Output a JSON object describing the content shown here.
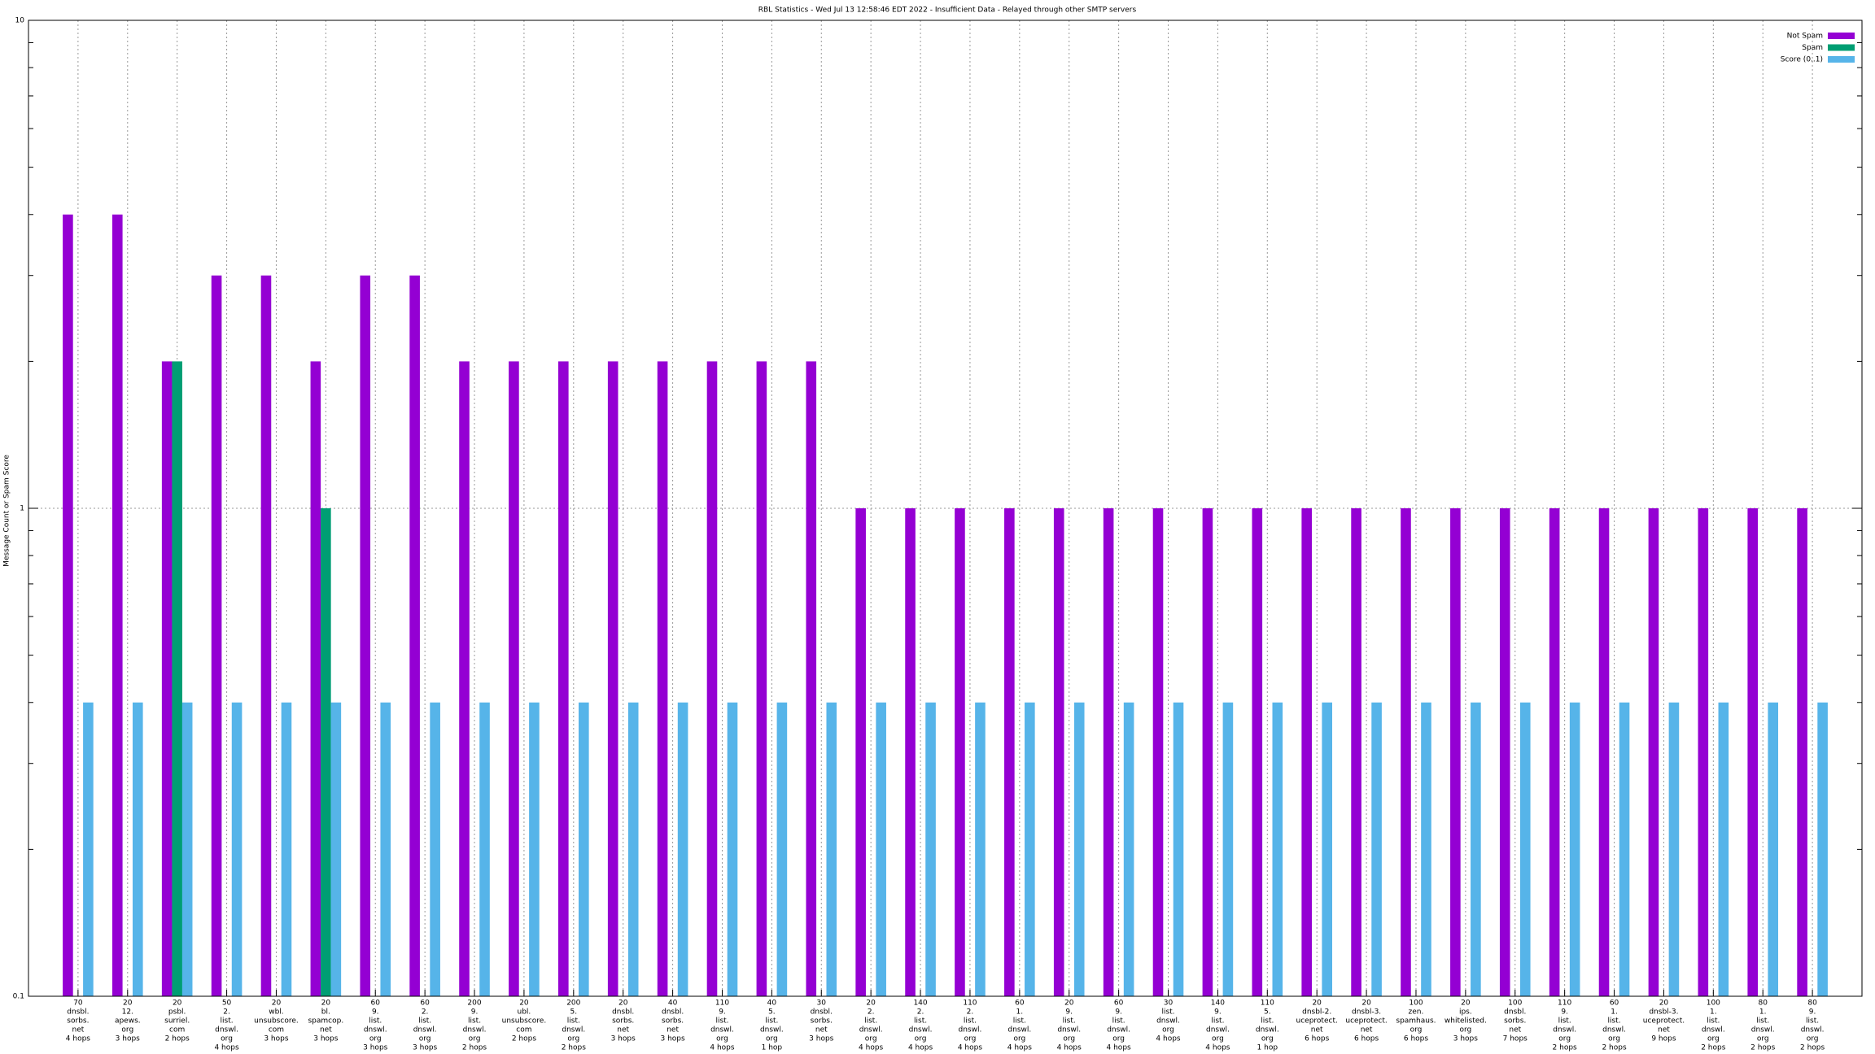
{
  "chart_data": {
    "type": "bar",
    "title": "RBL Statistics - Wed Jul 13 12:58:46 EDT 2022 - Insufficient Data - Relayed through other SMTP servers",
    "y_label": "Message Count or Spam Score",
    "log_y": true,
    "grid": true,
    "legend": "top-right",
    "ylim": [
      0.1,
      10
    ],
    "yticks": [
      0.1,
      1,
      10
    ],
    "categories": [
      [
        "70",
        "dnsbl.",
        "sorbs.",
        "net",
        "4 hops"
      ],
      [
        "20",
        "12.",
        "apews.",
        "org",
        "3 hops"
      ],
      [
        "20",
        "psbl.",
        "surriel.",
        "com",
        "2 hops"
      ],
      [
        "50",
        "2.",
        "list.",
        "dnswl.",
        "org",
        "4 hops"
      ],
      [
        "20",
        "wbl.",
        "unsubscore.",
        "com",
        "3 hops"
      ],
      [
        "20",
        "bl.",
        "spamcop.",
        "net",
        "3 hops"
      ],
      [
        "60",
        "9.",
        "list.",
        "dnswl.",
        "org",
        "3 hops"
      ],
      [
        "60",
        "2.",
        "list.",
        "dnswl.",
        "org",
        "3 hops"
      ],
      [
        "200",
        "9.",
        "list.",
        "dnswl.",
        "org",
        "2 hops"
      ],
      [
        "20",
        "ubl.",
        "unsubscore.",
        "com",
        "2 hops"
      ],
      [
        "200",
        "5.",
        "list.",
        "dnswl.",
        "org",
        "2 hops"
      ],
      [
        "20",
        "dnsbl.",
        "sorbs.",
        "net",
        "3 hops"
      ],
      [
        "40",
        "dnsbl.",
        "sorbs.",
        "net",
        "3 hops"
      ],
      [
        "110",
        "9.",
        "list.",
        "dnswl.",
        "org",
        "4 hops"
      ],
      [
        "40",
        "5.",
        "list.",
        "dnswl.",
        "org",
        "1 hop"
      ],
      [
        "30",
        "dnsbl.",
        "sorbs.",
        "net",
        "3 hops"
      ],
      [
        "20",
        "2.",
        "list.",
        "dnswl.",
        "org",
        "4 hops"
      ],
      [
        "140",
        "2.",
        "list.",
        "dnswl.",
        "org",
        "4 hops"
      ],
      [
        "110",
        "2.",
        "list.",
        "dnswl.",
        "org",
        "4 hops"
      ],
      [
        "60",
        "1.",
        "list.",
        "dnswl.",
        "org",
        "4 hops"
      ],
      [
        "20",
        "9.",
        "list.",
        "dnswl.",
        "org",
        "4 hops"
      ],
      [
        "60",
        "9.",
        "list.",
        "dnswl.",
        "org",
        "4 hops"
      ],
      [
        "30",
        "list.",
        "dnswl.",
        "org",
        "4 hops"
      ],
      [
        "140",
        "9.",
        "list.",
        "dnswl.",
        "org",
        "4 hops"
      ],
      [
        "110",
        "5.",
        "list.",
        "dnswl.",
        "org",
        "1 hop"
      ],
      [
        "20",
        "dnsbl-2.",
        "uceprotect.",
        "net",
        "6 hops"
      ],
      [
        "20",
        "dnsbl-3.",
        "uceprotect.",
        "net",
        "6 hops"
      ],
      [
        "100",
        "zen.",
        "spamhaus.",
        "org",
        "6 hops"
      ],
      [
        "20",
        "ips.",
        "whitelisted.",
        "org",
        "3 hops"
      ],
      [
        "100",
        "dnsbl.",
        "sorbs.",
        "net",
        "7 hops"
      ],
      [
        "110",
        "9.",
        "list.",
        "dnswl.",
        "org",
        "2 hops"
      ],
      [
        "60",
        "1.",
        "list.",
        "dnswl.",
        "org",
        "2 hops"
      ],
      [
        "20",
        "dnsbl-3.",
        "uceprotect.",
        "net",
        "9 hops"
      ],
      [
        "100",
        "1.",
        "list.",
        "dnswl.",
        "org",
        "2 hops"
      ],
      [
        "80",
        "1.",
        "list.",
        "dnswl.",
        "org",
        "2 hops"
      ],
      [
        "80",
        "9.",
        "list.",
        "dnswl.",
        "org",
        "2 hops"
      ]
    ],
    "series": [
      {
        "name": "Not Spam",
        "color": "#9400d3",
        "values": [
          4,
          4,
          2,
          3,
          3,
          2,
          3,
          3,
          2,
          2,
          2,
          2,
          2,
          2,
          2,
          2,
          1,
          1,
          1,
          1,
          1,
          1,
          1,
          1,
          1,
          1,
          1,
          1,
          1,
          1,
          1,
          1,
          1,
          1,
          1,
          1
        ]
      },
      {
        "name": "Spam",
        "color": "#009e73",
        "values": [
          null,
          null,
          2,
          null,
          null,
          1,
          null,
          null,
          null,
          null,
          null,
          null,
          null,
          null,
          null,
          null,
          null,
          null,
          null,
          null,
          null,
          null,
          null,
          null,
          null,
          null,
          null,
          null,
          null,
          null,
          null,
          null,
          null,
          null,
          null,
          null
        ]
      },
      {
        "name": "Score (0..1)",
        "color": "#56b4e9",
        "values": [
          0.4,
          0.4,
          0.4,
          0.4,
          0.4,
          0.4,
          0.4,
          0.4,
          0.4,
          0.4,
          0.4,
          0.4,
          0.4,
          0.4,
          0.4,
          0.4,
          0.4,
          0.4,
          0.4,
          0.4,
          0.4,
          0.4,
          0.4,
          0.4,
          0.4,
          0.4,
          0.4,
          0.4,
          0.4,
          0.4,
          0.4,
          0.4,
          0.4,
          0.4,
          0.4,
          0.4
        ]
      }
    ]
  }
}
